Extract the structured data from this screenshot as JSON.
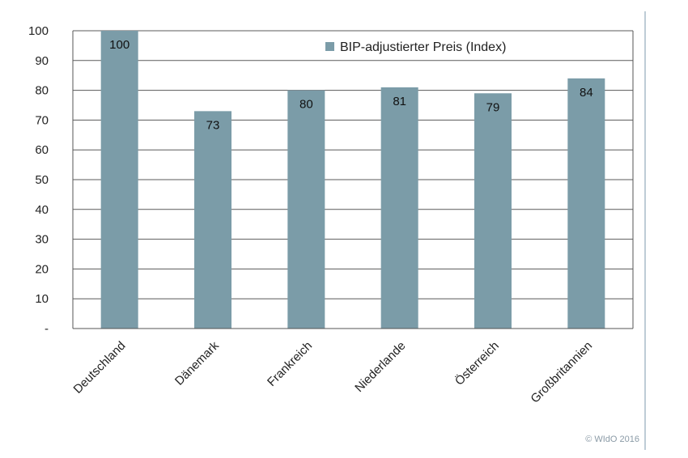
{
  "chart_data": {
    "type": "bar",
    "categories": [
      "Deutschland",
      "Dänemark",
      "Frankreich",
      "Niederlande",
      "Österreich",
      "Großbritannien"
    ],
    "series": [
      {
        "name": "BIP-adjustierter Preis (Index)",
        "values": [
          100,
          73,
          80,
          81,
          79,
          84
        ]
      }
    ],
    "data_labels": [
      "100",
      "73",
      "80",
      "81",
      "79",
      "84"
    ],
    "y_ticks": [
      "-",
      "10",
      "20",
      "30",
      "40",
      "50",
      "60",
      "70",
      "80",
      "90",
      "100"
    ],
    "ylim": [
      0,
      100
    ],
    "grid": true,
    "legend_position": "top-right",
    "bar_color": "#7b9ca8",
    "grid_color": "#5a5a5a",
    "title": "",
    "xlabel": "",
    "ylabel": ""
  },
  "copyright": "© WIdO 2016"
}
